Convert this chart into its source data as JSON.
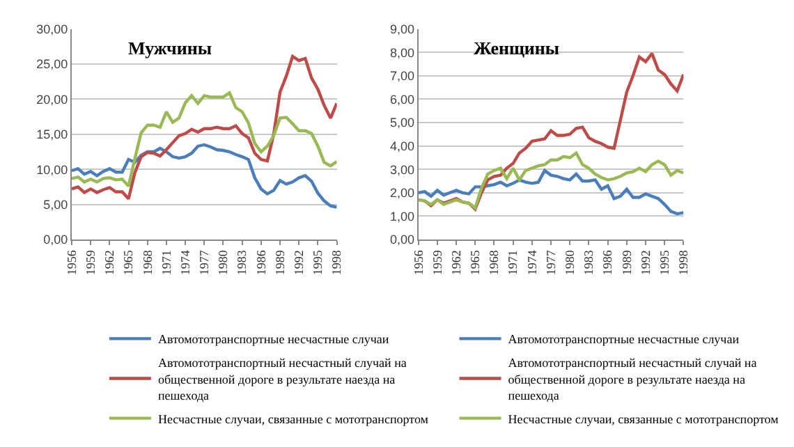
{
  "chart_data": [
    {
      "type": "line",
      "title": "Мужчины",
      "x": [
        1956,
        1957,
        1958,
        1959,
        1960,
        1961,
        1962,
        1963,
        1964,
        1965,
        1966,
        1967,
        1968,
        1969,
        1970,
        1971,
        1972,
        1973,
        1974,
        1975,
        1976,
        1977,
        1978,
        1979,
        1980,
        1981,
        1982,
        1983,
        1984,
        1985,
        1986,
        1987,
        1988,
        1989,
        1990,
        1991,
        1992,
        1993,
        1994,
        1995,
        1996,
        1997,
        1998
      ],
      "series": [
        {
          "name": "Автомототранспортные несчастные случаи",
          "color": "#4a7ebb",
          "values": [
            9.8,
            10.1,
            9.3,
            9.7,
            9.1,
            9.7,
            10.1,
            9.6,
            9.6,
            11.4,
            11.0,
            12.0,
            12.5,
            12.5,
            13.0,
            12.5,
            11.8,
            11.6,
            11.8,
            12.3,
            13.3,
            13.5,
            13.2,
            12.8,
            12.7,
            12.5,
            12.1,
            11.8,
            11.4,
            8.8,
            7.2,
            6.5,
            7.0,
            8.4,
            7.9,
            8.2,
            8.8,
            9.1,
            8.3,
            6.6,
            5.5,
            4.8,
            4.6
          ]
        },
        {
          "name": "Автомототранспортный несчастный случай на общественной дороге в результате наезда на пешехода",
          "color": "#be4b48",
          "values": [
            7.2,
            7.5,
            6.7,
            7.2,
            6.7,
            7.1,
            7.4,
            6.8,
            6.8,
            5.8,
            9.5,
            11.8,
            12.4,
            12.3,
            11.9,
            12.8,
            13.8,
            14.8,
            15.1,
            15.7,
            15.3,
            15.8,
            15.8,
            16.0,
            15.8,
            15.8,
            16.2,
            15.1,
            14.5,
            12.3,
            11.4,
            11.2,
            15.0,
            21.0,
            23.3,
            26.1,
            25.5,
            25.8,
            23.0,
            21.4,
            19.1,
            17.3,
            19.4
          ]
        },
        {
          "name": "Несчастные случаи, связанные с мототранспортом",
          "color": "#98b954",
          "values": [
            8.7,
            8.9,
            8.2,
            8.6,
            8.2,
            8.7,
            8.8,
            8.5,
            8.6,
            7.6,
            11.5,
            15.2,
            16.3,
            16.3,
            16.0,
            18.2,
            16.7,
            17.3,
            19.5,
            20.5,
            19.4,
            20.5,
            20.3,
            20.3,
            20.3,
            20.9,
            18.8,
            18.2,
            16.6,
            13.7,
            12.5,
            13.3,
            14.8,
            17.3,
            17.4,
            16.5,
            15.5,
            15.5,
            15.1,
            13.3,
            11.0,
            10.5,
            11.1
          ]
        }
      ],
      "xlim": [
        1956,
        1998
      ],
      "xticks": [
        1956,
        1959,
        1962,
        1965,
        1968,
        1971,
        1974,
        1977,
        1980,
        1983,
        1986,
        1989,
        1992,
        1995,
        1998
      ],
      "ylim": [
        0,
        30
      ],
      "yticks": [
        {
          "value": 0,
          "label": "0,00"
        },
        {
          "value": 5,
          "label": "5,00"
        },
        {
          "value": 10,
          "label": "10,00"
        },
        {
          "value": 15,
          "label": "15,00"
        },
        {
          "value": 20,
          "label": "20,00"
        },
        {
          "value": 25,
          "label": "25,00"
        },
        {
          "value": 30,
          "label": "30,00"
        }
      ],
      "grid": "y",
      "legend": "bottom",
      "marker": "none",
      "line_style": "solid"
    },
    {
      "type": "line",
      "title": "Женщины",
      "x": [
        1956,
        1957,
        1958,
        1959,
        1960,
        1961,
        1962,
        1963,
        1964,
        1965,
        1966,
        1967,
        1968,
        1969,
        1970,
        1971,
        1972,
        1973,
        1974,
        1975,
        1976,
        1977,
        1978,
        1979,
        1980,
        1981,
        1982,
        1983,
        1984,
        1985,
        1986,
        1987,
        1988,
        1989,
        1990,
        1991,
        1992,
        1993,
        1994,
        1995,
        1996,
        1997,
        1998
      ],
      "series": [
        {
          "name": "Автомототранспортные несчастные случаи",
          "color": "#4a7ebb",
          "values": [
            2.0,
            2.05,
            1.85,
            2.1,
            1.9,
            2.0,
            2.1,
            2.0,
            1.95,
            2.25,
            2.25,
            2.3,
            2.35,
            2.45,
            2.3,
            2.4,
            2.55,
            2.45,
            2.4,
            2.45,
            2.95,
            2.75,
            2.7,
            2.6,
            2.55,
            2.8,
            2.5,
            2.5,
            2.55,
            2.15,
            2.3,
            1.75,
            1.85,
            2.15,
            1.8,
            1.8,
            1.95,
            1.85,
            1.75,
            1.5,
            1.2,
            1.1,
            1.15
          ]
        },
        {
          "name": "Автомототранспортный несчастный случай на общественной дороге в результате наезда на пешехода",
          "color": "#be4b48",
          "values": [
            1.7,
            1.65,
            1.45,
            1.7,
            1.55,
            1.65,
            1.75,
            1.6,
            1.55,
            1.3,
            2.0,
            2.55,
            2.7,
            2.75,
            3.05,
            3.25,
            3.7,
            3.9,
            4.2,
            4.25,
            4.3,
            4.65,
            4.45,
            4.45,
            4.5,
            4.75,
            4.8,
            4.35,
            4.2,
            4.1,
            3.95,
            3.9,
            5.1,
            6.3,
            7.0,
            7.8,
            7.6,
            7.95,
            7.25,
            7.05,
            6.65,
            6.35,
            7.05
          ]
        },
        {
          "name": "Несчастные случаи, связанные с мототранспортом",
          "color": "#98b954",
          "values": [
            1.7,
            1.65,
            1.5,
            1.7,
            1.5,
            1.6,
            1.7,
            1.6,
            1.55,
            1.35,
            2.2,
            2.8,
            2.95,
            3.05,
            2.6,
            3.05,
            2.55,
            2.95,
            3.05,
            3.15,
            3.2,
            3.4,
            3.4,
            3.55,
            3.5,
            3.7,
            3.2,
            3.05,
            2.8,
            2.65,
            2.55,
            2.6,
            2.7,
            2.85,
            2.9,
            3.05,
            2.9,
            3.2,
            3.35,
            3.2,
            2.75,
            2.95,
            2.85
          ]
        }
      ],
      "xlim": [
        1956,
        1998
      ],
      "xticks": [
        1956,
        1959,
        1962,
        1965,
        1968,
        1971,
        1974,
        1977,
        1980,
        1983,
        1986,
        1989,
        1992,
        1995,
        1998
      ],
      "ylim": [
        0,
        9
      ],
      "yticks": [
        {
          "value": 0,
          "label": "0,00"
        },
        {
          "value": 1,
          "label": "1,00"
        },
        {
          "value": 2,
          "label": "2,00"
        },
        {
          "value": 3,
          "label": "3,00"
        },
        {
          "value": 4,
          "label": "4,00"
        },
        {
          "value": 5,
          "label": "5,00"
        },
        {
          "value": 6,
          "label": "6,00"
        },
        {
          "value": 7,
          "label": "7,00"
        },
        {
          "value": 8,
          "label": "8,00"
        },
        {
          "value": 9,
          "label": "9,00"
        }
      ],
      "grid": "y",
      "legend": "bottom",
      "marker": "none",
      "line_style": "solid"
    }
  ]
}
